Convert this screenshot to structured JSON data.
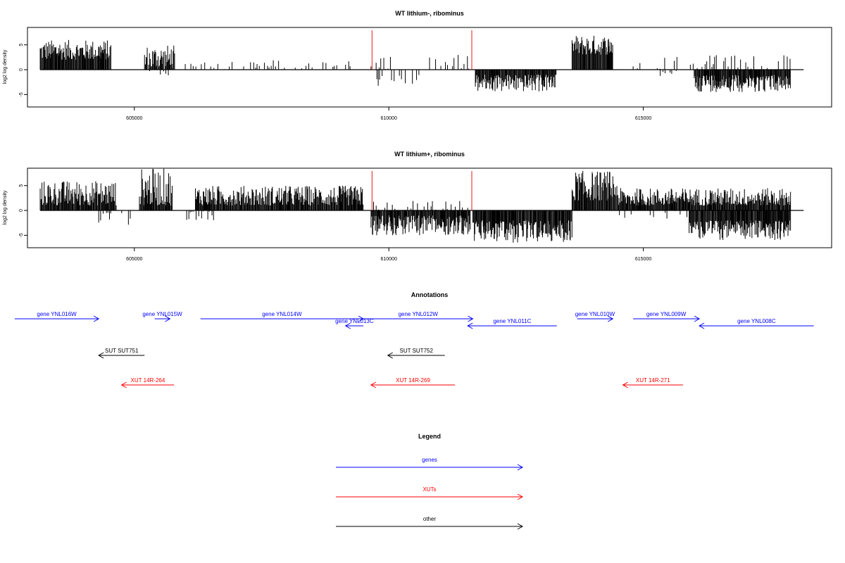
{
  "chart_data": [
    {
      "type": "bar",
      "title": "WT lithium-, ribominus",
      "ylabel": "log2 log density",
      "xlim": [
        602900,
        618700
      ],
      "ylim": [
        -7.5,
        8.5
      ],
      "x_ticks": [
        605000,
        610000,
        615000
      ],
      "y_ticks": [
        -5,
        0,
        5
      ],
      "y_tick_labels": [
        "-5",
        "0",
        "5"
      ],
      "markers": [
        609670,
        611630
      ],
      "marker_color": "#e31a1c",
      "series": [
        {
          "strand": "+",
          "regions": [
            {
              "start": 603150,
              "end": 604550,
              "min": 2,
              "max": 6
            },
            {
              "start": 605200,
              "end": 605800,
              "min": 0,
              "max": 5
            },
            {
              "start": 606000,
              "end": 609300,
              "min": 0,
              "max": 2,
              "sparse": true
            },
            {
              "start": 609650,
              "end": 610200,
              "min": 0,
              "max": 3,
              "sparse": true
            },
            {
              "start": 610800,
              "end": 611600,
              "min": 0,
              "max": 3,
              "sparse": true
            },
            {
              "start": 613600,
              "end": 614400,
              "min": 3,
              "max": 7
            },
            {
              "start": 614800,
              "end": 617900,
              "min": 0,
              "max": 3,
              "sparse": true
            }
          ]
        },
        {
          "strand": "-",
          "regions": [
            {
              "start": 605300,
              "end": 605800,
              "min": 0,
              "max": 1.5,
              "sparse": true
            },
            {
              "start": 609700,
              "end": 610600,
              "min": 0,
              "max": 3.5,
              "sparse": true
            },
            {
              "start": 611700,
              "end": 613300,
              "min": 1,
              "max": 4.5
            },
            {
              "start": 615200,
              "end": 615700,
              "min": 0,
              "max": 1.5,
              "sparse": true
            },
            {
              "start": 616000,
              "end": 617900,
              "min": 1,
              "max": 4.5
            }
          ]
        }
      ]
    },
    {
      "type": "bar",
      "title": "WT lithium+, ribominus",
      "ylabel": "log2 log density",
      "xlim": [
        602900,
        618700
      ],
      "ylim": [
        -7.5,
        8.5
      ],
      "x_ticks": [
        605000,
        610000,
        615000
      ],
      "y_ticks": [
        -5,
        0,
        5
      ],
      "y_tick_labels": [
        "-5",
        "0",
        "5"
      ],
      "markers": [
        609670,
        611630
      ],
      "marker_color": "#e31a1c",
      "series": [
        {
          "strand": "+",
          "regions": [
            {
              "start": 603150,
              "end": 604650,
              "min": 1,
              "max": 6
            },
            {
              "start": 605100,
              "end": 605750,
              "min": 1,
              "max": 8.5
            },
            {
              "start": 606200,
              "end": 609500,
              "min": 1,
              "max": 5
            },
            {
              "start": 609700,
              "end": 611600,
              "min": 0,
              "max": 2,
              "sparse": true
            },
            {
              "start": 613600,
              "end": 614500,
              "min": 2,
              "max": 8
            },
            {
              "start": 614500,
              "end": 617900,
              "min": 1,
              "max": 4.5
            }
          ]
        },
        {
          "strand": "-",
          "regions": [
            {
              "start": 604300,
              "end": 605000,
              "min": 0,
              "max": 3,
              "sparse": true
            },
            {
              "start": 606000,
              "end": 606600,
              "min": 0,
              "max": 2,
              "sparse": true
            },
            {
              "start": 609650,
              "end": 611600,
              "min": 1,
              "max": 5
            },
            {
              "start": 611650,
              "end": 613600,
              "min": 2,
              "max": 6.5
            },
            {
              "start": 614500,
              "end": 615900,
              "min": 0,
              "max": 2,
              "sparse": true
            },
            {
              "start": 615900,
              "end": 617900,
              "min": 2,
              "max": 6
            }
          ]
        }
      ]
    }
  ],
  "annotations": {
    "title": "Annotations",
    "features": [
      {
        "label": "gene YNL016W",
        "start": 602650,
        "end": 604300,
        "strand": "+",
        "color": "#0000ff",
        "row": 0
      },
      {
        "label": "gene YNL015W",
        "start": 605400,
        "end": 605700,
        "strand": "+",
        "color": "#0000ff",
        "row": 0
      },
      {
        "label": "gene YNL014W",
        "start": 606300,
        "end": 609500,
        "strand": "+",
        "color": "#0000ff",
        "row": 0
      },
      {
        "label": "gene YNL013C",
        "start": 609500,
        "end": 609150,
        "strand": "-",
        "color": "#0000ff",
        "row": 1
      },
      {
        "label": "gene YNL012W",
        "start": 609500,
        "end": 611650,
        "strand": "+",
        "color": "#0000ff",
        "row": 0
      },
      {
        "label": "gene YNL011C",
        "start": 613300,
        "end": 611550,
        "strand": "-",
        "color": "#0000ff",
        "row": 1
      },
      {
        "label": "gene YNL010W",
        "start": 613700,
        "end": 614400,
        "strand": "+",
        "color": "#0000ff",
        "row": 0
      },
      {
        "label": "gene YNL009W",
        "start": 614800,
        "end": 616100,
        "strand": "+",
        "color": "#0000ff",
        "row": 0
      },
      {
        "label": "gene YNL008C",
        "start": 618350,
        "end": 616100,
        "strand": "-",
        "color": "#0000ff",
        "row": 1
      },
      {
        "label": "SUT SUT751",
        "start": 605200,
        "end": 604300,
        "strand": "-",
        "color": "#000000",
        "row": 2
      },
      {
        "label": "SUT SUT752",
        "start": 611100,
        "end": 609980,
        "strand": "-",
        "color": "#000000",
        "row": 2
      },
      {
        "label": "XUT 14R-264",
        "start": 605780,
        "end": 604750,
        "strand": "-",
        "color": "#ff0000",
        "row": 3
      },
      {
        "label": "XUT 14R-269",
        "start": 611300,
        "end": 609650,
        "strand": "-",
        "color": "#ff0000",
        "row": 3
      },
      {
        "label": "XUT 14R-271",
        "start": 615780,
        "end": 614600,
        "strand": "-",
        "color": "#ff0000",
        "row": 3
      }
    ]
  },
  "legend": {
    "title": "Legend",
    "items": [
      {
        "label": "genes",
        "color": "#0000ff"
      },
      {
        "label": "XUTs",
        "color": "#ff0000"
      },
      {
        "label": "other",
        "color": "#000000"
      }
    ]
  }
}
